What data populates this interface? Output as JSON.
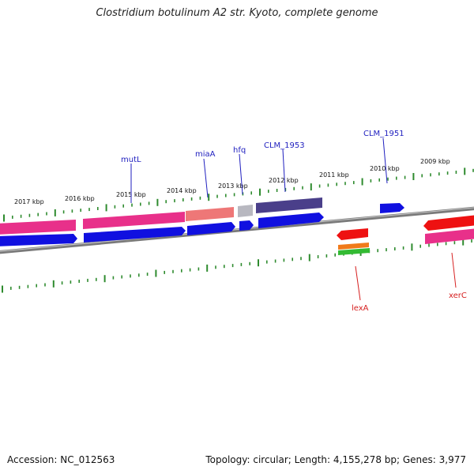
{
  "title": "Clostridium botulinum A2 str. Kyoto, complete genome",
  "footer": {
    "accession": "Accession: NC_012563",
    "stats": "Topology: circular; Length: 4,155,278 bp; Genes: 3,977"
  },
  "kbp_labels": [
    "2017 kbp",
    "2016 kbp",
    "2015 kbp",
    "2014 kbp",
    "2013 kbp",
    "2012 kbp",
    "2011 kbp",
    "2010 kbp",
    "2009 kbp"
  ],
  "gene_labels": {
    "mutL": "mutL",
    "miaA": "miaA",
    "hfq": "hfq",
    "CLM_1953": "CLM_1953",
    "CLM_1951": "CLM_1951",
    "lexA": "lexA",
    "xerC": "xerC"
  },
  "colors": {
    "backbone": "#7a7a7a",
    "tick": "#2e8b2e",
    "pink": "#e8308a",
    "blue": "#1010e0",
    "salmon": "#ee7777",
    "gray": "#b8b8c0",
    "purple": "#4a3f8a",
    "red": "#ee1111",
    "orange": "#f07a1a",
    "green": "#33bb33",
    "label_blue": "#1f1fbf",
    "label_red": "#d62020"
  }
}
